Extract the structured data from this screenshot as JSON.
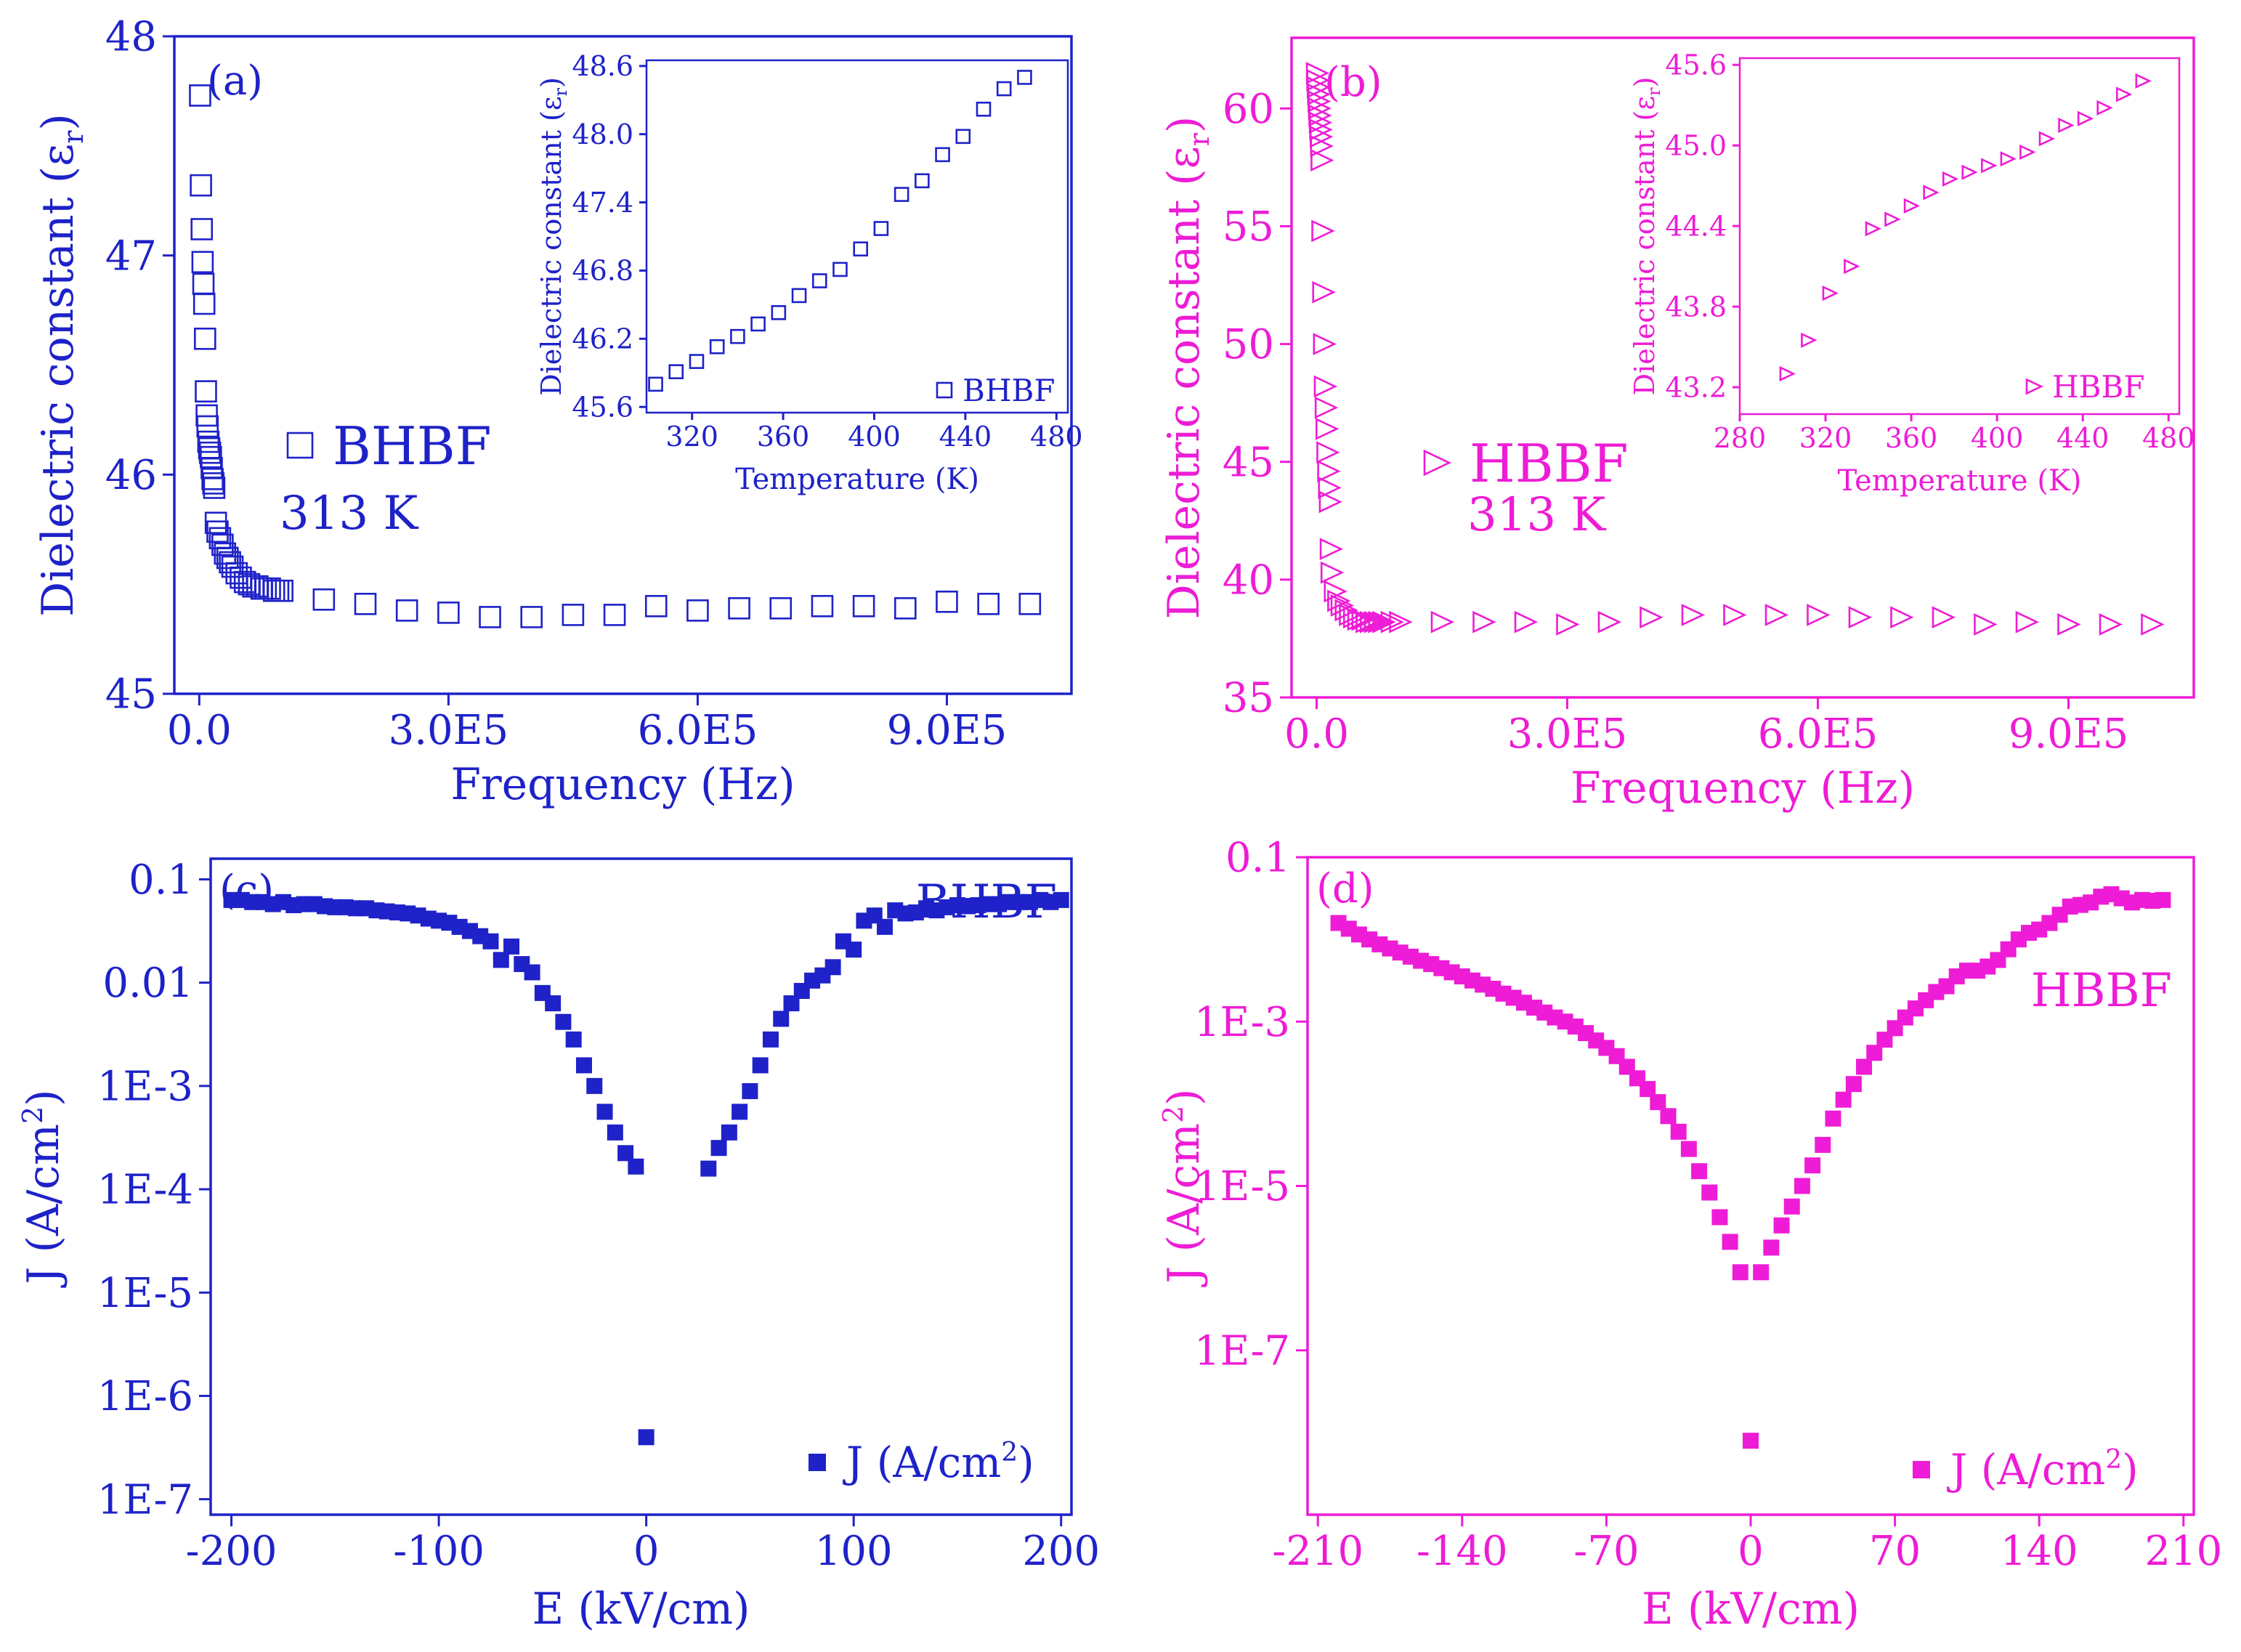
{
  "colors": {
    "blue": "#1e22c8",
    "magenta": "#ee1cd6"
  },
  "chart_data": [
    {
      "type": "scatter",
      "panel": "(a)",
      "color": "#1e22c8",
      "marker": "open-square",
      "xlabel": "Frequency (Hz)",
      "ylabel_main": "Dielectric constant (",
      "ylabel_symbol": "ε",
      "ylabel_sub": "r",
      "ylabel_close": ")",
      "xlim": [
        -30000,
        1050000
      ],
      "ylim": [
        45,
        48
      ],
      "xticks": [
        0,
        300000,
        600000,
        900000
      ],
      "xtick_labels": [
        "0.0",
        "3.0E5",
        "6.0E5",
        "9.0E5"
      ],
      "yticks": [
        45,
        46,
        47,
        48
      ],
      "ytick_labels": [
        "45",
        "46",
        "47",
        "48"
      ],
      "legend": "BHBF",
      "annotation": "313 K",
      "series": [
        {
          "name": "BHBF",
          "x": [
            1000,
            2000,
            3000,
            4000,
            5000,
            6000,
            7000,
            8000,
            9000,
            10000,
            11000,
            12000,
            13000,
            14000,
            15000,
            16000,
            17000,
            18000,
            20000,
            22000,
            25000,
            28000,
            31000,
            34000,
            37000,
            40000,
            45000,
            50000,
            55000,
            60000,
            65000,
            70000,
            75000,
            80000,
            85000,
            90000,
            95000,
            100000,
            150000,
            200000,
            250000,
            300000,
            350000,
            400000,
            450000,
            500000,
            550000,
            600000,
            650000,
            700000,
            750000,
            800000,
            850000,
            900000,
            950000,
            1000000
          ],
          "y": [
            47.73,
            47.32,
            47.12,
            46.97,
            46.87,
            46.78,
            46.62,
            46.38,
            46.27,
            46.22,
            46.15,
            46.12,
            46.1,
            46.08,
            46.03,
            45.98,
            45.96,
            45.94,
            45.78,
            45.74,
            45.71,
            45.68,
            45.64,
            45.62,
            45.6,
            45.58,
            45.55,
            45.53,
            45.51,
            45.5,
            45.49,
            45.49,
            45.48,
            45.48,
            45.48,
            45.47,
            45.47,
            45.47,
            45.43,
            45.41,
            45.38,
            45.37,
            45.35,
            45.35,
            45.36,
            45.36,
            45.4,
            45.38,
            45.39,
            45.39,
            45.4,
            45.4,
            45.39,
            45.42,
            45.41,
            45.41
          ]
        }
      ],
      "inset": {
        "xlabel": "Temperature (K)",
        "ylabel": "Dielectric constant (ε",
        "ylabel_sub": "r",
        "ylabel_close": ")",
        "xlim": [
          300,
          485
        ],
        "ylim": [
          45.55,
          48.65
        ],
        "xticks": [
          320,
          360,
          400,
          440,
          480
        ],
        "xtick_labels": [
          "320",
          "360",
          "400",
          "440",
          "480"
        ],
        "yticks": [
          45.6,
          46.2,
          46.8,
          47.4,
          48.0,
          48.6
        ],
        "ytick_labels": [
          "45.6",
          "46.2",
          "46.8",
          "47.4",
          "48.0",
          "48.6"
        ],
        "legend": "BHBF",
        "x": [
          304,
          313,
          322,
          331,
          340,
          349,
          358,
          367,
          376,
          385,
          394,
          403,
          412,
          421,
          430,
          439,
          448,
          457,
          466
        ],
        "y": [
          45.8,
          45.91,
          46.0,
          46.13,
          46.22,
          46.33,
          46.43,
          46.58,
          46.71,
          46.81,
          46.99,
          47.17,
          47.47,
          47.59,
          47.82,
          47.98,
          48.22,
          48.4,
          48.5
        ]
      }
    },
    {
      "type": "scatter",
      "panel": "(b)",
      "color": "#ee1cd6",
      "marker": "open-triangle-right",
      "xlabel": "Frequency (Hz)",
      "ylabel_main": "Dielectric constant (",
      "ylabel_symbol": "ε",
      "ylabel_sub": "r",
      "ylabel_close": ")",
      "xlim": [
        -30000,
        1050000
      ],
      "ylim": [
        35,
        63
      ],
      "xticks": [
        0,
        300000,
        600000,
        900000
      ],
      "xtick_labels": [
        "0.0",
        "3.0E5",
        "6.0E5",
        "9.0E5"
      ],
      "yticks": [
        35,
        40,
        45,
        50,
        55,
        60
      ],
      "ytick_labels": [
        "35",
        "40",
        "45",
        "50",
        "55",
        "60"
      ],
      "legend": "HBBF",
      "annotation": "313 K",
      "series": [
        {
          "name": "HBBF",
          "x": [
            500,
            1000,
            1500,
            2000,
            2500,
            3000,
            3500,
            4000,
            4500,
            5000,
            5500,
            6000,
            7000,
            8000,
            9000,
            10000,
            11000,
            12000,
            13000,
            14000,
            15000,
            16000,
            17000,
            18000,
            22000,
            26000,
            30000,
            35000,
            40000,
            45000,
            50000,
            55000,
            60000,
            65000,
            70000,
            75000,
            80000,
            90000,
            100000,
            150000,
            200000,
            250000,
            300000,
            350000,
            400000,
            450000,
            500000,
            550000,
            600000,
            650000,
            700000,
            750000,
            800000,
            850000,
            900000,
            950000,
            1000000
          ],
          "y": [
            61.5,
            61.2,
            60.9,
            60.6,
            60.3,
            60,
            59.7,
            59.4,
            59.1,
            58.8,
            58.4,
            57.8,
            54.8,
            52.2,
            50,
            48.2,
            47.3,
            46.4,
            45.4,
            44.6,
            43.9,
            43.3,
            41.3,
            40.3,
            39.5,
            39.1,
            38.9,
            38.7,
            38.5,
            38.4,
            38.3,
            38.3,
            38.2,
            38.2,
            38.2,
            38.2,
            38.2,
            38.2,
            38.2,
            38.2,
            38.2,
            38.2,
            38.1,
            38.2,
            38.4,
            38.5,
            38.5,
            38.5,
            38.5,
            38.4,
            38.4,
            38.4,
            38.1,
            38.2,
            38.1,
            38.1,
            38.1
          ]
        }
      ],
      "inset": {
        "xlabel": "Temperature (K)",
        "ylabel": "Dielectric constant (ε",
        "ylabel_sub": "r",
        "ylabel_close": ")",
        "xlim": [
          280,
          485
        ],
        "ylim": [
          43.0,
          45.65
        ],
        "xticks": [
          280,
          320,
          360,
          400,
          440,
          480
        ],
        "xtick_labels": [
          "280",
          "320",
          "360",
          "400",
          "440",
          "480"
        ],
        "yticks": [
          43.2,
          43.8,
          44.4,
          45.0,
          45.6
        ],
        "ytick_labels": [
          "43.2",
          "43.8",
          "44.4",
          "45.0",
          "45.6"
        ],
        "legend": "HBBF",
        "x": [
          302,
          312,
          322,
          332,
          342,
          351,
          360,
          369,
          378,
          387,
          396,
          405,
          414,
          423,
          432,
          441,
          450,
          459,
          468
        ],
        "y": [
          43.3,
          43.55,
          43.9,
          44.1,
          44.38,
          44.45,
          44.55,
          44.65,
          44.75,
          44.8,
          44.85,
          44.9,
          44.95,
          45.05,
          45.15,
          45.2,
          45.28,
          45.38,
          45.48
        ]
      }
    },
    {
      "type": "scatter",
      "panel": "(c)",
      "color": "#1e22c8",
      "marker": "filled-square",
      "yscale": "log",
      "xlabel": "E (kV/cm)",
      "ylabel_main": "J (A/cm",
      "ylabel_sup": "2",
      "ylabel_close": ")",
      "xlim": [
        -210,
        205
      ],
      "ylim_log10": [
        -7.15,
        -0.8
      ],
      "xticks": [
        -200,
        -100,
        0,
        100,
        200
      ],
      "xtick_labels": [
        "-200",
        "-100",
        "0",
        "100",
        "200"
      ],
      "ytick_log10": [
        -1,
        -2,
        -3,
        -4,
        -5,
        -6,
        -7
      ],
      "ytick_labels": [
        "0.1",
        "0.01",
        "1E-3",
        "1E-4",
        "1E-5",
        "1E-6",
        "1E-7"
      ],
      "title_label": "BHBF",
      "legend": "J (A/cm",
      "legend_sup": "2",
      "legend_close": ")",
      "series": [
        {
          "name": "J (A/cm2)",
          "x": [
            -200,
            -195,
            -190,
            -185,
            -180,
            -175,
            -170,
            -165,
            -160,
            -155,
            -150,
            -145,
            -140,
            -135,
            -130,
            -125,
            -120,
            -115,
            -110,
            -105,
            -100,
            -95,
            -90,
            -85,
            -80,
            -75,
            -70,
            -65,
            -60,
            -55,
            -50,
            -45,
            -40,
            -35,
            -30,
            -25,
            -20,
            -15,
            -10,
            -5,
            0,
            30,
            35,
            40,
            45,
            50,
            55,
            60,
            65,
            70,
            75,
            80,
            85,
            90,
            95,
            100,
            105,
            110,
            115,
            120,
            125,
            130,
            135,
            140,
            145,
            150,
            155,
            160,
            165,
            170,
            175,
            180,
            185,
            190,
            195,
            200
          ],
          "log10y": [
            -1.2,
            -1.2,
            -1.22,
            -1.22,
            -1.24,
            -1.22,
            -1.25,
            -1.24,
            -1.24,
            -1.26,
            -1.27,
            -1.27,
            -1.28,
            -1.28,
            -1.3,
            -1.31,
            -1.32,
            -1.33,
            -1.35,
            -1.38,
            -1.4,
            -1.42,
            -1.46,
            -1.5,
            -1.55,
            -1.6,
            -1.78,
            -1.65,
            -1.82,
            -1.9,
            -2.1,
            -2.2,
            -2.38,
            -2.55,
            -2.8,
            -3.0,
            -3.25,
            -3.45,
            -3.65,
            -3.78,
            -6.4,
            -3.8,
            -3.6,
            -3.45,
            -3.25,
            -3.05,
            -2.8,
            -2.55,
            -2.35,
            -2.2,
            -2.08,
            -1.98,
            -1.93,
            -1.85,
            -1.6,
            -1.68,
            -1.4,
            -1.35,
            -1.46,
            -1.3,
            -1.33,
            -1.32,
            -1.28,
            -1.3,
            -1.27,
            -1.25,
            -1.26,
            -1.25,
            -1.24,
            -1.24,
            -1.22,
            -1.22,
            -1.22,
            -1.2,
            -1.22,
            -1.2
          ]
        }
      ]
    },
    {
      "type": "scatter",
      "panel": "(d)",
      "color": "#ee1cd6",
      "marker": "filled-square",
      "yscale": "log",
      "xlabel": "E (kV/cm)",
      "ylabel_main": "J (A/cm",
      "ylabel_sup": "2",
      "ylabel_close": ")",
      "xlim": [
        -215,
        215
      ],
      "ylim_log10": [
        -9,
        -1
      ],
      "xticks": [
        -210,
        -140,
        -70,
        0,
        70,
        140,
        210
      ],
      "xtick_labels": [
        "-210",
        "-140",
        "-70",
        "0",
        "70",
        "140",
        "210"
      ],
      "ytick_log10": [
        -1,
        -3,
        -5,
        -7
      ],
      "ytick_labels": [
        "0.1",
        "1E-3",
        "1E-5",
        "1E-7"
      ],
      "title_label": "HBBF",
      "legend": "J (A/cm",
      "legend_sup": "2",
      "legend_close": ")",
      "series": [
        {
          "name": "J (A/cm2)",
          "x": [
            -200,
            -195,
            -190,
            -185,
            -180,
            -175,
            -170,
            -165,
            -160,
            -155,
            -150,
            -145,
            -140,
            -135,
            -130,
            -125,
            -120,
            -115,
            -110,
            -105,
            -100,
            -95,
            -90,
            -85,
            -80,
            -75,
            -70,
            -65,
            -60,
            -55,
            -50,
            -45,
            -40,
            -35,
            -30,
            -25,
            -20,
            -15,
            -10,
            -5,
            0,
            5,
            10,
            15,
            20,
            25,
            30,
            35,
            40,
            45,
            50,
            55,
            60,
            65,
            70,
            75,
            80,
            85,
            90,
            95,
            100,
            105,
            110,
            115,
            120,
            125,
            130,
            135,
            140,
            145,
            150,
            155,
            160,
            165,
            170,
            175,
            180,
            185,
            190,
            195,
            200
          ],
          "log10y": [
            -1.8,
            -1.87,
            -1.94,
            -2.0,
            -2.06,
            -2.11,
            -2.16,
            -2.21,
            -2.26,
            -2.3,
            -2.35,
            -2.4,
            -2.45,
            -2.5,
            -2.55,
            -2.6,
            -2.66,
            -2.71,
            -2.77,
            -2.83,
            -2.89,
            -2.95,
            -3.0,
            -3.06,
            -3.14,
            -3.23,
            -3.32,
            -3.42,
            -3.55,
            -3.69,
            -3.82,
            -3.98,
            -4.15,
            -4.34,
            -4.55,
            -4.82,
            -5.08,
            -5.38,
            -5.68,
            -6.05,
            -8.1,
            -6.05,
            -5.75,
            -5.48,
            -5.25,
            -5.0,
            -4.75,
            -4.5,
            -4.18,
            -3.95,
            -3.76,
            -3.55,
            -3.38,
            -3.22,
            -3.08,
            -2.95,
            -2.84,
            -2.74,
            -2.64,
            -2.57,
            -2.45,
            -2.38,
            -2.38,
            -2.33,
            -2.25,
            -2.12,
            -2.0,
            -1.92,
            -1.88,
            -1.8,
            -1.7,
            -1.6,
            -1.58,
            -1.55,
            -1.48,
            -1.45,
            -1.5,
            -1.55,
            -1.52,
            -1.53,
            -1.52
          ]
        }
      ]
    }
  ]
}
